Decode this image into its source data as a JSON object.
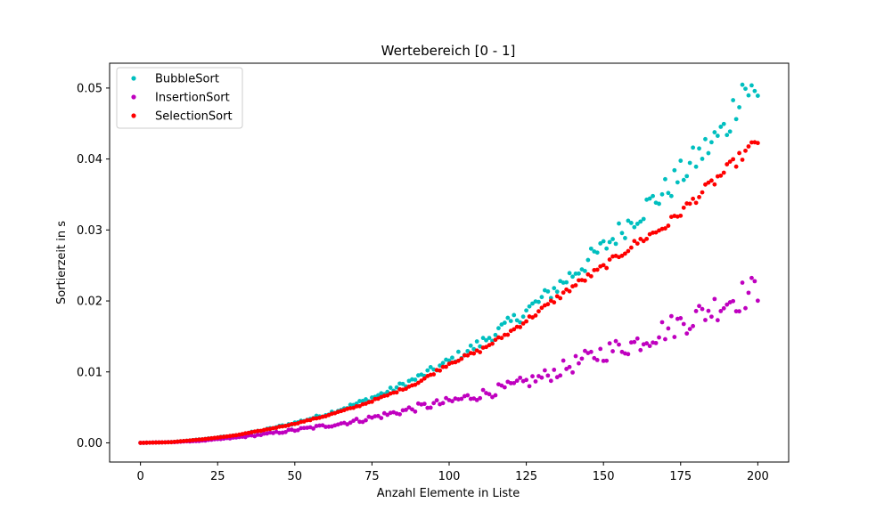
{
  "chart_data": {
    "type": "scatter",
    "title": "Wertebereich [0 - 1]",
    "xlabel": "Anzahl Elemente in Liste",
    "ylabel": "Sortierzeit in s",
    "xlim": [
      -10,
      210
    ],
    "ylim": [
      -0.0027,
      0.0535
    ],
    "xticks": [
      0,
      25,
      50,
      75,
      100,
      125,
      150,
      175,
      200
    ],
    "yticks": [
      0.0,
      0.01,
      0.02,
      0.03,
      0.04,
      0.05
    ],
    "ytick_labels": [
      "0.00",
      "0.01",
      "0.02",
      "0.03",
      "0.04",
      "0.05"
    ],
    "grid": false,
    "legend_position": "upper-left",
    "x": {
      "start": 0,
      "end": 200,
      "step": 1
    },
    "series": [
      {
        "name": "BubbleSort",
        "color": "#00bfbf",
        "anchors": [
          [
            0,
            0
          ],
          [
            10,
            0.0001
          ],
          [
            20,
            0.0005
          ],
          [
            30,
            0.001
          ],
          [
            40,
            0.0018
          ],
          [
            50,
            0.0028
          ],
          [
            60,
            0.004
          ],
          [
            70,
            0.0055
          ],
          [
            80,
            0.0072
          ],
          [
            90,
            0.0092
          ],
          [
            100,
            0.0115
          ],
          [
            110,
            0.014
          ],
          [
            120,
            0.017
          ],
          [
            130,
            0.0202
          ],
          [
            140,
            0.0238
          ],
          [
            150,
            0.0275
          ],
          [
            160,
            0.0318
          ],
          [
            170,
            0.0355
          ],
          [
            180,
            0.04
          ],
          [
            190,
            0.0445
          ],
          [
            195,
            0.0505
          ],
          [
            200,
            0.0485
          ]
        ],
        "noise": 0.055
      },
      {
        "name": "InsertionSort",
        "color": "#bf00bf",
        "anchors": [
          [
            0,
            0
          ],
          [
            10,
            0.0001
          ],
          [
            20,
            0.0003
          ],
          [
            30,
            0.0007
          ],
          [
            40,
            0.0012
          ],
          [
            50,
            0.0018
          ],
          [
            60,
            0.0024
          ],
          [
            70,
            0.0031
          ],
          [
            80,
            0.004
          ],
          [
            90,
            0.005
          ],
          [
            100,
            0.0058
          ],
          [
            110,
            0.0068
          ],
          [
            120,
            0.0079
          ],
          [
            130,
            0.0092
          ],
          [
            140,
            0.011
          ],
          [
            150,
            0.0128
          ],
          [
            160,
            0.014
          ],
          [
            170,
            0.016
          ],
          [
            180,
            0.0178
          ],
          [
            190,
            0.02
          ],
          [
            200,
            0.0215
          ]
        ],
        "noise": 0.11
      },
      {
        "name": "SelectionSort",
        "color": "#ff0000",
        "anchors": [
          [
            0,
            0
          ],
          [
            10,
            0.0001
          ],
          [
            20,
            0.0005
          ],
          [
            30,
            0.001
          ],
          [
            40,
            0.0018
          ],
          [
            50,
            0.0027
          ],
          [
            60,
            0.0038
          ],
          [
            70,
            0.0051
          ],
          [
            80,
            0.0067
          ],
          [
            90,
            0.0085
          ],
          [
            100,
            0.0112
          ],
          [
            110,
            0.013
          ],
          [
            120,
            0.0157
          ],
          [
            130,
            0.0188
          ],
          [
            140,
            0.022
          ],
          [
            150,
            0.0248
          ],
          [
            160,
            0.028
          ],
          [
            170,
            0.0305
          ],
          [
            180,
            0.0345
          ],
          [
            190,
            0.0385
          ],
          [
            200,
            0.0425
          ]
        ],
        "noise": 0.02
      }
    ]
  }
}
